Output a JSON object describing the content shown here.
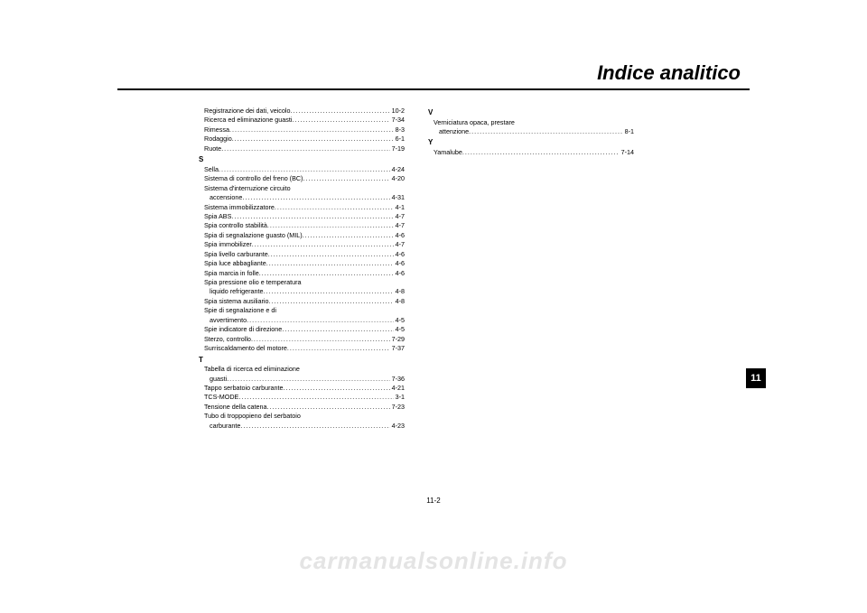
{
  "header": {
    "title": "Indice analitico"
  },
  "side_tab": "11",
  "page_number": "11-2",
  "watermark": "carmanualsonline.info",
  "columns": [
    [
      {
        "type": "entry",
        "label": "Registrazione dei dati, veicolo",
        "page": "10-2",
        "indent": true
      },
      {
        "type": "entry",
        "label": "Ricerca ed eliminazione guasti",
        "page": "7-34",
        "indent": true
      },
      {
        "type": "entry",
        "label": "Rimessa",
        "page": "8-3",
        "indent": true
      },
      {
        "type": "entry",
        "label": "Rodaggio",
        "page": "6-1",
        "indent": true
      },
      {
        "type": "entry",
        "label": "Ruote",
        "page": "7-19",
        "indent": true
      },
      {
        "type": "letter",
        "text": "S"
      },
      {
        "type": "entry",
        "label": "Sella",
        "page": "4-24",
        "indent": true
      },
      {
        "type": "entry",
        "label": "Sistema di controllo del freno (BC)",
        "page": "4-20",
        "indent": true
      },
      {
        "type": "wrap",
        "line1": "Sistema d'interruzione circuito",
        "line2": "accensione",
        "page": "4-31"
      },
      {
        "type": "entry",
        "label": "Sistema immobilizzatore",
        "page": "4-1",
        "indent": true
      },
      {
        "type": "entry",
        "label": "Spia ABS",
        "page": "4-7",
        "indent": true
      },
      {
        "type": "entry",
        "label": "Spia controllo stabilità",
        "page": "4-7",
        "indent": true
      },
      {
        "type": "entry",
        "label": "Spia di segnalazione guasto (MIL)",
        "page": "4-6",
        "indent": true
      },
      {
        "type": "entry",
        "label": "Spia immobilizer",
        "page": "4-7",
        "indent": true
      },
      {
        "type": "entry",
        "label": "Spia livello carburante",
        "page": "4-6",
        "indent": true
      },
      {
        "type": "entry",
        "label": "Spia luce abbagliante",
        "page": "4-6",
        "indent": true
      },
      {
        "type": "entry",
        "label": "Spia marcia in folle",
        "page": "4-6",
        "indent": true
      },
      {
        "type": "wrap",
        "line1": "Spia pressione olio e temperatura",
        "line2": "liquido refrigerante",
        "page": "4-8"
      },
      {
        "type": "entry",
        "label": "Spia sistema ausiliario",
        "page": "4-8",
        "indent": true
      },
      {
        "type": "wrap",
        "line1": "Spie di segnalazione e di",
        "line2": "avvertimento",
        "page": "4-5"
      },
      {
        "type": "entry",
        "label": "Spie indicatore di direzione",
        "page": "4-5",
        "indent": true
      },
      {
        "type": "entry",
        "label": "Sterzo, controllo",
        "page": "7-29",
        "indent": true
      },
      {
        "type": "entry",
        "label": "Surriscaldamento del motore",
        "page": "7-37",
        "indent": true
      },
      {
        "type": "letter",
        "text": "T"
      },
      {
        "type": "wrap",
        "line1": "Tabella di ricerca ed eliminazione",
        "line2": "guasti",
        "page": "7-36"
      },
      {
        "type": "entry",
        "label": "Tappo serbatoio carburante",
        "page": "4-21",
        "indent": true
      },
      {
        "type": "entry",
        "label": "TCS-MODE",
        "page": "3-1",
        "indent": true
      },
      {
        "type": "entry",
        "label": "Tensione della catena",
        "page": "7-23",
        "indent": true
      },
      {
        "type": "wrap",
        "line1": "Tubo di troppopieno del serbatoio",
        "line2": "carburante",
        "page": "4-23"
      }
    ],
    [
      {
        "type": "letter",
        "text": "V"
      },
      {
        "type": "wrap",
        "line1": "Verniciatura opaca, prestare",
        "line2": "attenzione",
        "page": "8-1"
      },
      {
        "type": "letter",
        "text": "Y"
      },
      {
        "type": "entry",
        "label": "Yamalube",
        "page": "7-14",
        "indent": true
      }
    ]
  ]
}
